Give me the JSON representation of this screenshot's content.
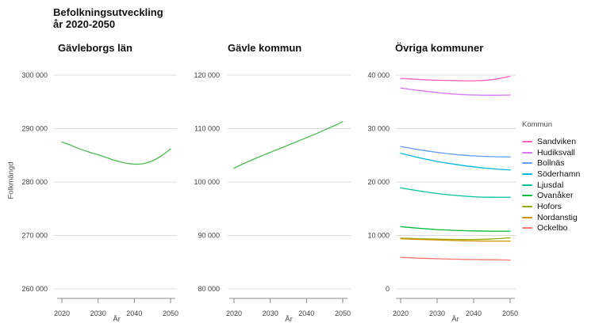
{
  "page": {
    "title": "Befolkningsutveckling\når 2020-2050",
    "y_axis_label": "Folkmängd"
  },
  "colors": {
    "single_series_green": "#4CBB50",
    "gridline": "#dcdcdc",
    "axis_line": "#8a8a8a",
    "tick_text": "#404040",
    "title_text": "#111111"
  },
  "chart_data": [
    {
      "type": "line",
      "title": "Gävleborgs län",
      "xlabel": "År",
      "ylabel": "Folkmängd",
      "grid": true,
      "xlim": [
        2020,
        2050
      ],
      "ylim": [
        260000,
        300000
      ],
      "yticks": [
        {
          "v": 300000,
          "label": "300 000"
        },
        {
          "v": 290000,
          "label": "290 000"
        },
        {
          "v": 280000,
          "label": "280 000"
        },
        {
          "v": 270000,
          "label": "270 000"
        },
        {
          "v": 260000,
          "label": "260 000"
        }
      ],
      "xticks": [
        {
          "v": 2020,
          "label": "2020"
        },
        {
          "v": 2030,
          "label": "2030"
        },
        {
          "v": 2040,
          "label": "2040"
        },
        {
          "v": 2050,
          "label": "2050"
        }
      ],
      "x": [
        2020,
        2022,
        2024,
        2026,
        2028,
        2030,
        2032,
        2034,
        2036,
        2038,
        2040,
        2042,
        2044,
        2046,
        2048,
        2050
      ],
      "series": [
        {
          "name": "Gävleborgs län",
          "color": "#4CBB50",
          "values": [
            287500,
            287000,
            286450,
            285950,
            285500,
            285100,
            284650,
            284200,
            283800,
            283500,
            283350,
            283400,
            283700,
            284300,
            285150,
            286200
          ]
        }
      ]
    },
    {
      "type": "line",
      "title": "Gävle kommun",
      "xlabel": "År",
      "grid": true,
      "xlim": [
        2020,
        2050
      ],
      "ylim": [
        80000,
        120000
      ],
      "yticks": [
        {
          "v": 120000,
          "label": "120 000"
        },
        {
          "v": 110000,
          "label": "110 000"
        },
        {
          "v": 100000,
          "label": "100 000"
        },
        {
          "v": 90000,
          "label": "90 000"
        },
        {
          "v": 80000,
          "label": "80 000"
        }
      ],
      "xticks": [
        {
          "v": 2020,
          "label": "2020"
        },
        {
          "v": 2030,
          "label": "2030"
        },
        {
          "v": 2040,
          "label": "2040"
        },
        {
          "v": 2050,
          "label": "2050"
        }
      ],
      "x": [
        2020,
        2022,
        2024,
        2026,
        2028,
        2030,
        2032,
        2034,
        2036,
        2038,
        2040,
        2042,
        2044,
        2046,
        2048,
        2050
      ],
      "series": [
        {
          "name": "Gävle kommun",
          "color": "#4CBB50",
          "values": [
            102600,
            103250,
            103850,
            104450,
            105000,
            105550,
            106100,
            106650,
            107200,
            107750,
            108300,
            108850,
            109450,
            110050,
            110650,
            111300
          ]
        }
      ]
    },
    {
      "type": "line",
      "title": "Övriga kommuner",
      "xlabel": "År",
      "grid": true,
      "legend_title": "Kommun",
      "legend_position": "right",
      "xlim": [
        2020,
        2050
      ],
      "ylim": [
        0,
        40000
      ],
      "yticks": [
        {
          "v": 40000,
          "label": "40 000"
        },
        {
          "v": 30000,
          "label": "30 000"
        },
        {
          "v": 20000,
          "label": "20 000"
        },
        {
          "v": 10000,
          "label": "10 000"
        },
        {
          "v": 0,
          "label": "0"
        }
      ],
      "xticks": [
        {
          "v": 2020,
          "label": "2020"
        },
        {
          "v": 2030,
          "label": "2030"
        },
        {
          "v": 2040,
          "label": "2040"
        },
        {
          "v": 2050,
          "label": "2050"
        }
      ],
      "x": [
        2020,
        2025,
        2030,
        2035,
        2040,
        2045,
        2050
      ],
      "series": [
        {
          "name": "Sandviken",
          "color": "#FF61C3",
          "values": [
            39400,
            39200,
            39050,
            39000,
            38950,
            39150,
            39800
          ]
        },
        {
          "name": "Hudiksvall",
          "color": "#DB72FB",
          "values": [
            37600,
            37150,
            36750,
            36450,
            36300,
            36250,
            36300
          ]
        },
        {
          "name": "Bollnäs",
          "color": "#619CFF",
          "values": [
            26650,
            26050,
            25550,
            25150,
            24900,
            24750,
            24700
          ]
        },
        {
          "name": "Söderhamn",
          "color": "#00B9E3",
          "values": [
            25400,
            24550,
            23850,
            23300,
            22850,
            22500,
            22250
          ]
        },
        {
          "name": "Ljusdal",
          "color": "#00C19F",
          "values": [
            18900,
            18350,
            17850,
            17500,
            17250,
            17150,
            17150
          ]
        },
        {
          "name": "Ovanåker",
          "color": "#00BA38",
          "values": [
            11650,
            11350,
            11100,
            10950,
            10850,
            10800,
            10800
          ]
        },
        {
          "name": "Hofors",
          "color": "#93AA00",
          "values": [
            9500,
            9400,
            9300,
            9250,
            9250,
            9350,
            9550
          ]
        },
        {
          "name": "Nordanstig",
          "color": "#D39200",
          "values": [
            9400,
            9250,
            9150,
            9050,
            8980,
            8950,
            8950
          ]
        },
        {
          "name": "Ockelbo",
          "color": "#F8766D",
          "values": [
            5900,
            5750,
            5650,
            5550,
            5500,
            5450,
            5400
          ]
        }
      ]
    }
  ]
}
